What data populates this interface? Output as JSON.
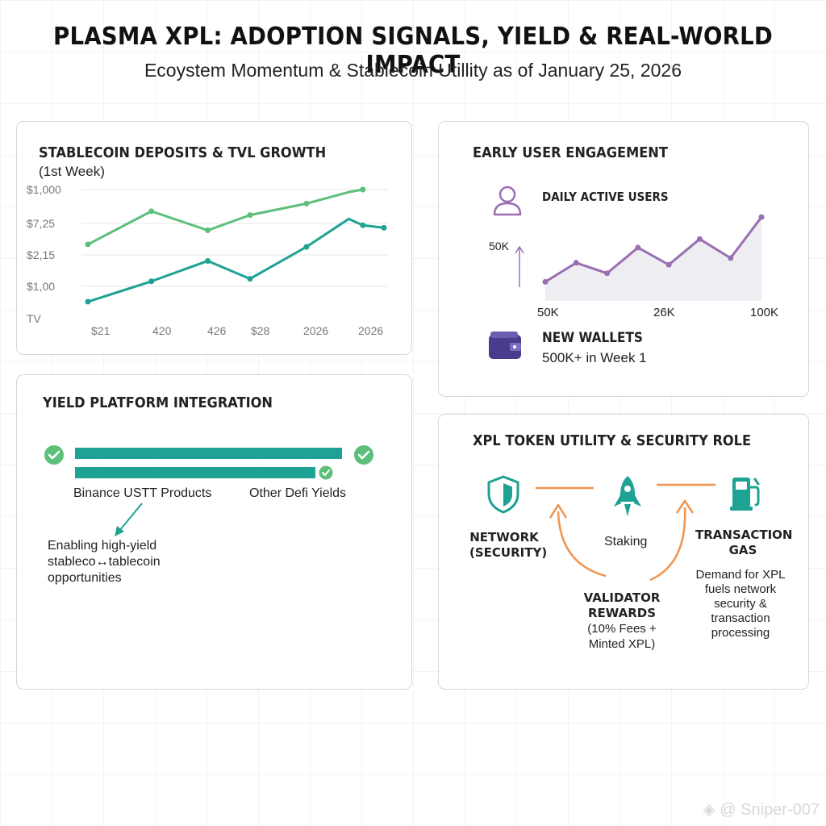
{
  "header": {
    "title": "PLASMA XPL:   ADOPTION SIGNALS, YIELD & REAL-WORLD IMPACT",
    "subtitle": "Ecoystem Momentum & Stablecoin Utillity as of January 25, 2026"
  },
  "colors": {
    "green": "#5cbf7a",
    "teal": "#1ea293",
    "purple": "#9a6fb2",
    "orange": "#f0944d",
    "wallet": "#4a3b8c"
  },
  "tvl_panel": {
    "title": "STABLECOIN DEPOSITS & TVL GROWTH",
    "subtitle": "(1st Week)"
  },
  "engagement_panel": {
    "title": "EARLY USER ENGAGEMENT",
    "dau_label": "DAILY ACTIVE USERS",
    "dau_icon": "user-icon",
    "y_marker": "50K",
    "x_ticks": [
      "50K",
      "26K",
      "100K"
    ],
    "wallets_label": "NEW WALLETS",
    "wallets_value": "500K+ in Week 1",
    "wallet_icon": "wallet-icon"
  },
  "yield_panel": {
    "title": "YIELD PLATFORM INTEGRATION",
    "bars": [
      {
        "label": "Binance USTT Products",
        "fill": 1.0
      },
      {
        "label": "Other Defi Yields",
        "fill": 0.9
      }
    ],
    "note": "Enabling high-yield stableco↔tablecoin opportunities"
  },
  "xpl_panel": {
    "title": "XPL TOKEN UTILITY & SECURITY ROLE",
    "network_label": "NETWORK (SECURITY)",
    "staking_label": "Staking",
    "gas_label": "TRANSACTION GAS",
    "validator_label": "VALIDATOR REWARDS",
    "validator_detail": "(10% Fees + Minted XPL)",
    "demand_note": "Demand for XPL fuels network security & transaction processing",
    "icons": [
      "shield-icon",
      "rocket-icon",
      "fuel-pump-icon"
    ]
  },
  "chart_data": [
    {
      "type": "line",
      "title": "STABLECOIN DEPOSITS & TVL GROWTH",
      "subtitle": "(1st Week)",
      "x": [
        "$21",
        "420",
        "426",
        "$28",
        "2026",
        "2026"
      ],
      "y_ticks": [
        "$1,000",
        "$7,25",
        "$2,15",
        "$1,00",
        "TV"
      ],
      "ylim": [
        0,
        1000
      ],
      "grid": true,
      "series": [
        {
          "x": [
            0,
            0.9,
            1.7,
            2.3,
            3.1,
            3.7,
            3.9,
            4.2
          ],
          "values": [
            570,
            830,
            680,
            800,
            890,
            980,
            1000,
            null
          ],
          "color": "#5cbf7a"
        },
        {
          "x": [
            0,
            0.9,
            1.7,
            2.3,
            3.1,
            3.7,
            3.9,
            4.2
          ],
          "values": [
            120,
            280,
            440,
            300,
            550,
            770,
            720,
            700
          ],
          "color": "#1ea293"
        }
      ]
    },
    {
      "type": "area",
      "title": "DAILY ACTIVE USERS",
      "x_ticks": [
        "50K",
        "26K",
        "100K"
      ],
      "grid": false,
      "series": [
        {
          "values": [
            20,
            40,
            29,
            56,
            38,
            65,
            45,
            88
          ],
          "color": "#9a6fb2"
        }
      ]
    }
  ]
}
